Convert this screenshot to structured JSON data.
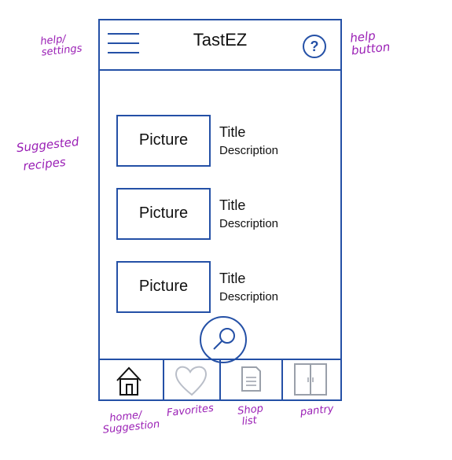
{
  "app": {
    "title": "TastEZ"
  },
  "header": {
    "menu_icon": "hamburger-icon",
    "help_label": "?"
  },
  "recipes": [
    {
      "picture": "Picture",
      "title": "Title",
      "description": "Description"
    },
    {
      "picture": "Picture",
      "title": "Title",
      "description": "Description"
    },
    {
      "picture": "Picture",
      "title": "Title",
      "description": "Description"
    }
  ],
  "search_icon": "magnifier-icon",
  "bottom_nav": [
    {
      "icon": "home-icon"
    },
    {
      "icon": "heart-icon"
    },
    {
      "icon": "shopping-list-icon"
    },
    {
      "icon": "pantry-icon"
    }
  ],
  "annotations": {
    "help_settings": [
      "help/",
      "settings"
    ],
    "help_button": [
      "help",
      "button"
    ],
    "suggested": [
      "Suggested",
      "recipes"
    ],
    "home": [
      "home/",
      "Suggestion"
    ],
    "favorites": "Favorites",
    "shop": [
      "Shop",
      "list"
    ],
    "pantry": "pantry"
  },
  "colors": {
    "wireframe": "#2450a6",
    "annotation": "#9a1fb5"
  }
}
